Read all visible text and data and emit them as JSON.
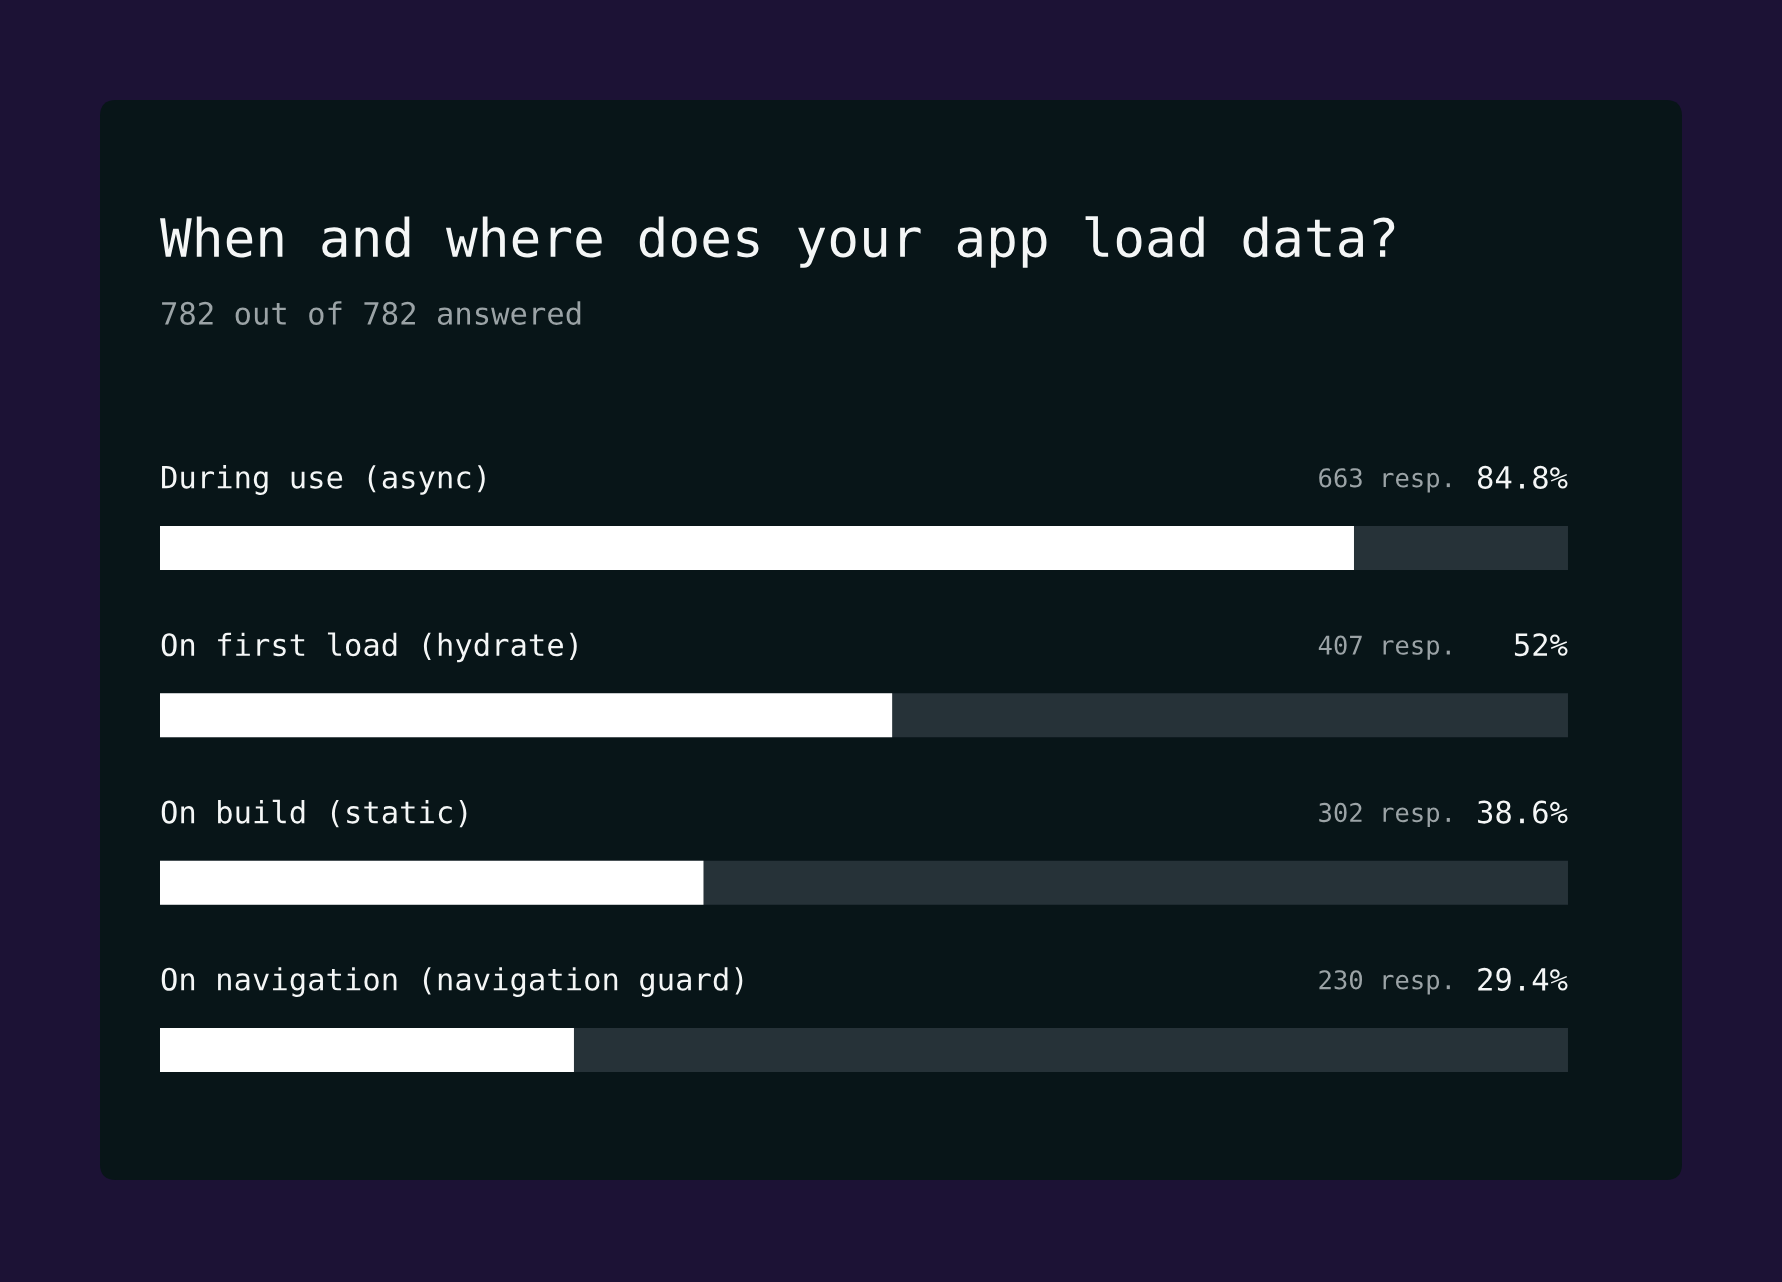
{
  "chart_data": {
    "type": "bar",
    "orientation": "horizontal",
    "title": "When and where does your app load data?",
    "subtitle": "782 out of 782 answered",
    "categories": [
      "During use (async)",
      "On first load (hydrate)",
      "On build (static)",
      "On navigation (navigation guard)"
    ],
    "values": [
      84.8,
      52,
      38.6,
      29.4
    ],
    "color": "#ffffff",
    "value_labels": [
      "84.8%",
      "52%",
      "38.6%",
      "29.4%"
    ],
    "annotations": [
      "663 resp.",
      "407 resp.",
      "302 resp.",
      "230 resp."
    ],
    "xlim": [
      0,
      100
    ],
    "tick_labels": "y"
  }
}
